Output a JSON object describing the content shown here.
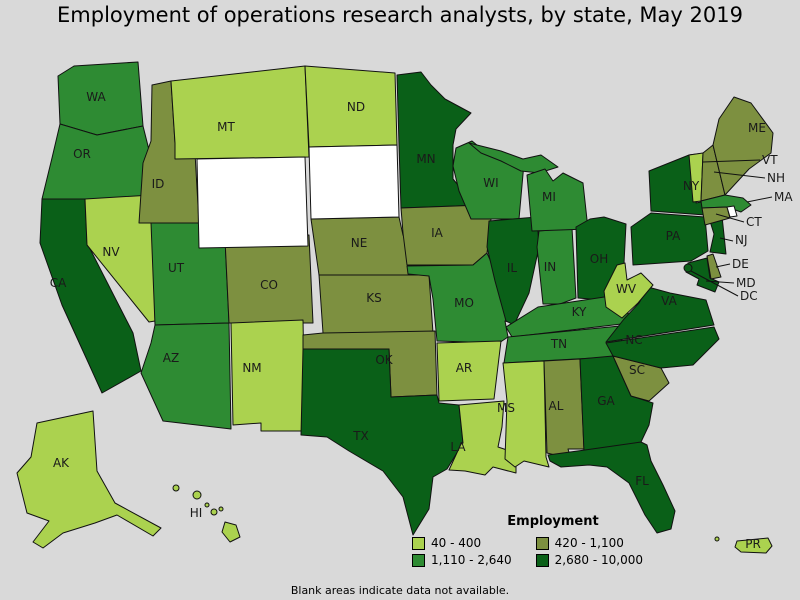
{
  "title": "Employment of operations research analysts, by state, May 2019",
  "footnote": "Blank areas indicate data not available.",
  "colors": {
    "background": "#d9d9d9",
    "state_border": "#111111",
    "no_data_fill": "#ffffff"
  },
  "legend": {
    "title": "Employment",
    "items": [
      {
        "label": "40 - 400",
        "color": "#abd24f"
      },
      {
        "label": "420 - 1,100",
        "color": "#7d9040"
      },
      {
        "label": "1,110 - 2,640",
        "color": "#2e8b33"
      },
      {
        "label": "2,680 - 10,000",
        "color": "#0a6018"
      }
    ]
  },
  "chart_data": {
    "type": "choropleth",
    "region": "United States",
    "title": "Employment of operations research analysts, by state, May 2019",
    "legend_title": "Employment",
    "bins": [
      "40 - 400",
      "420 - 1,100",
      "1,110 - 2,640",
      "2,680 - 10,000"
    ],
    "states": [
      {
        "abbr": "WA",
        "bin": "1,110 - 2,640"
      },
      {
        "abbr": "OR",
        "bin": "1,110 - 2,640"
      },
      {
        "abbr": "CA",
        "bin": "2,680 - 10,000"
      },
      {
        "abbr": "NV",
        "bin": "40 - 400"
      },
      {
        "abbr": "ID",
        "bin": "420 - 1,100"
      },
      {
        "abbr": "MT",
        "bin": "40 - 400"
      },
      {
        "abbr": "UT",
        "bin": "1,110 - 2,640"
      },
      {
        "abbr": "CO",
        "bin": "420 - 1,100"
      },
      {
        "abbr": "AZ",
        "bin": "1,110 - 2,640"
      },
      {
        "abbr": "NM",
        "bin": "40 - 400"
      },
      {
        "abbr": "ND",
        "bin": "40 - 400"
      },
      {
        "abbr": "NE",
        "bin": "420 - 1,100"
      },
      {
        "abbr": "KS",
        "bin": "420 - 1,100"
      },
      {
        "abbr": "OK",
        "bin": "420 - 1,100"
      },
      {
        "abbr": "TX",
        "bin": "2,680 - 10,000"
      },
      {
        "abbr": "MN",
        "bin": "2,680 - 10,000"
      },
      {
        "abbr": "IA",
        "bin": "420 - 1,100"
      },
      {
        "abbr": "MO",
        "bin": "1,110 - 2,640"
      },
      {
        "abbr": "AR",
        "bin": "40 - 400"
      },
      {
        "abbr": "LA",
        "bin": "40 - 400"
      },
      {
        "abbr": "WI",
        "bin": "1,110 - 2,640"
      },
      {
        "abbr": "IL",
        "bin": "2,680 - 10,000"
      },
      {
        "abbr": "IN",
        "bin": "1,110 - 2,640"
      },
      {
        "abbr": "MI",
        "bin": "1,110 - 2,640"
      },
      {
        "abbr": "OH",
        "bin": "2,680 - 10,000"
      },
      {
        "abbr": "KY",
        "bin": "1,110 - 2,640"
      },
      {
        "abbr": "TN",
        "bin": "1,110 - 2,640"
      },
      {
        "abbr": "MS",
        "bin": "40 - 400"
      },
      {
        "abbr": "AL",
        "bin": "420 - 1,100"
      },
      {
        "abbr": "GA",
        "bin": "2,680 - 10,000"
      },
      {
        "abbr": "SC",
        "bin": "420 - 1,100"
      },
      {
        "abbr": "NC",
        "bin": "2,680 - 10,000"
      },
      {
        "abbr": "VA",
        "bin": "2,680 - 10,000"
      },
      {
        "abbr": "WV",
        "bin": "40 - 400"
      },
      {
        "abbr": "MD",
        "bin": "2,680 - 10,000"
      },
      {
        "abbr": "DE",
        "bin": "420 - 1,100"
      },
      {
        "abbr": "PA",
        "bin": "2,680 - 10,000"
      },
      {
        "abbr": "NJ",
        "bin": "2,680 - 10,000"
      },
      {
        "abbr": "NY",
        "bin": "2,680 - 10,000"
      },
      {
        "abbr": "VT",
        "bin": "40 - 400"
      },
      {
        "abbr": "NH",
        "bin": "420 - 1,100"
      },
      {
        "abbr": "ME",
        "bin": "420 - 1,100"
      },
      {
        "abbr": "MA",
        "bin": "1,110 - 2,640"
      },
      {
        "abbr": "CT",
        "bin": "420 - 1,100"
      },
      {
        "abbr": "FL",
        "bin": "2,680 - 10,000"
      },
      {
        "abbr": "AK",
        "bin": "40 - 400"
      },
      {
        "abbr": "HI",
        "bin": "40 - 400"
      },
      {
        "abbr": "PR",
        "bin": "40 - 400"
      },
      {
        "abbr": "DC",
        "bin": "2,680 - 10,000"
      }
    ],
    "no_data_states": [
      "WY",
      "SD",
      "RI"
    ]
  }
}
